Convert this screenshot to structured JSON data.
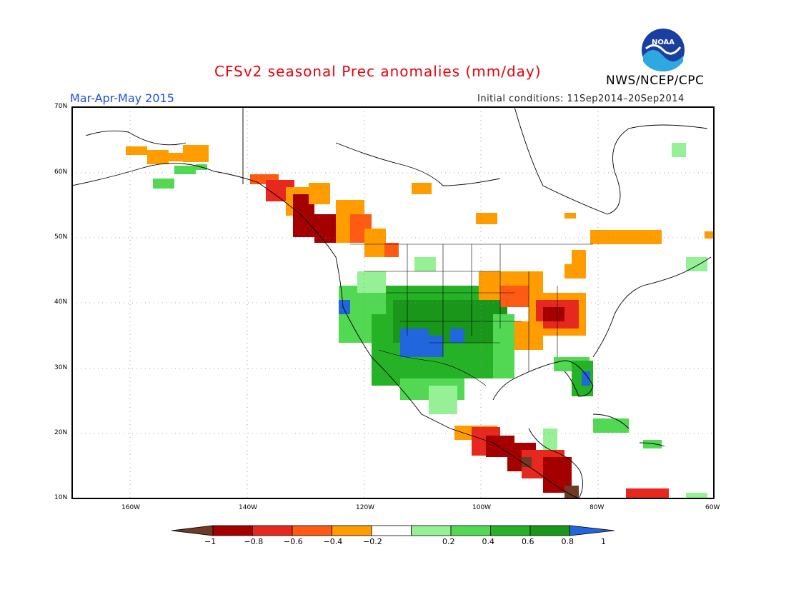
{
  "header": {
    "title": "CFSv2 seasonal Prec anomalies (mm/day)",
    "org": "NWS/NCEP/CPC",
    "season": "Mar-Apr-May 2015",
    "initial_conditions": "Initial conditions: 11Sep2014–20Sep2014",
    "logo_text": "NOAA"
  },
  "map": {
    "lat_labels": [
      "70N",
      "60N",
      "50N",
      "40N",
      "30N",
      "20N",
      "10N"
    ],
    "lon_labels": [
      "160W",
      "140W",
      "120W",
      "100W",
      "80W",
      "60W"
    ],
    "anomaly_regions": [
      {
        "name": "Alaska south coast",
        "category": "-0.4"
      },
      {
        "name": "Pacific Northwest coast",
        "category": "-0.8"
      },
      {
        "name": "Southwest US",
        "category": "0.6"
      },
      {
        "name": "Great Plains",
        "category": "0.8"
      },
      {
        "name": "Ohio Valley",
        "category": "-0.6"
      },
      {
        "name": "Florida",
        "category": "0.8"
      },
      {
        "name": "Southern Mexico",
        "category": "-0.8"
      },
      {
        "name": "Caribbean",
        "category": "0.6"
      }
    ]
  },
  "colorbar": {
    "labels": [
      "−1",
      "−0.8",
      "−0.6",
      "−0.4",
      "−0.2",
      "0.2",
      "0.4",
      "0.6",
      "0.8",
      "1"
    ],
    "colors": [
      "#6e3a26",
      "#a40000",
      "#e6281e",
      "#ff5a14",
      "#ff9c00",
      "#ffffff",
      "#96f096",
      "#52d852",
      "#26b226",
      "#1a961a",
      "#2266dd"
    ]
  }
}
